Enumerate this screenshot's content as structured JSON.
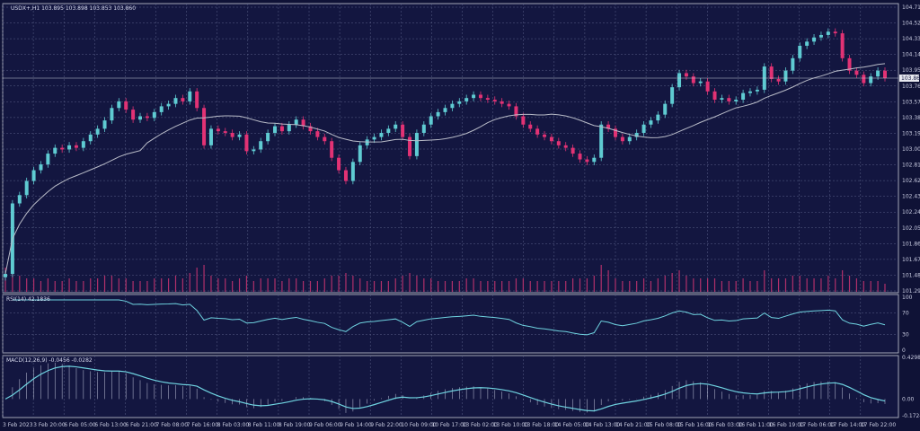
{
  "chart_data": {
    "type": "candlestick",
    "title": "USDX+,H1 103.895 103.898 103.853 103.860",
    "symbol_timeframe": "USDX+,H1",
    "last_price_label": "103.860",
    "last_price": 103.86,
    "colors": {
      "background": "#131640",
      "grid": "#5b6188",
      "bull": "#5fcbd2",
      "bear": "#e23274",
      "ma": "#b9bcc8",
      "volume": "#b0306a",
      "indicator": "#6fd3e0",
      "macd_hist": "#a7abc4",
      "frame": "#c9ccd8"
    },
    "price_axis": {
      "ticks": [
        "104.715",
        "104.525",
        "104.335",
        "104.145",
        "103.955",
        "103.765",
        "103.575",
        "103.385",
        "103.195",
        "103.005",
        "102.815",
        "102.625",
        "102.435",
        "102.245",
        "102.055",
        "101.865",
        "101.675",
        "101.485",
        "101.295"
      ],
      "ylim": [
        101.295,
        104.715
      ]
    },
    "time_axis": [
      "3 Feb 2023",
      "3 Feb 20:00",
      "6 Feb 05:00",
      "6 Feb 13:00",
      "6 Feb 21:00",
      "7 Feb 08:00",
      "7 Feb 16:00",
      "8 Feb 03:00",
      "8 Feb 11:00",
      "8 Feb 19:00",
      "9 Feb 06:00",
      "9 Feb 14:00",
      "9 Feb 22:00",
      "10 Feb 09:00",
      "10 Feb 17:00",
      "13 Feb 02:00",
      "13 Feb 10:00",
      "13 Feb 18:00",
      "14 Feb 05:00",
      "14 Feb 13:00",
      "14 Feb 21:00",
      "15 Feb 08:00",
      "15 Feb 16:00",
      "16 Feb 03:00",
      "16 Feb 11:00",
      "16 Feb 19:00",
      "17 Feb 06:00",
      "17 Feb 14:00",
      "17 Feb 22:00"
    ],
    "open_first": 101.46,
    "closes": [
      101.5,
      102.35,
      102.45,
      102.62,
      102.75,
      102.82,
      102.95,
      103.02,
      103.0,
      103.05,
      103.02,
      103.1,
      103.18,
      103.25,
      103.35,
      103.5,
      103.58,
      103.48,
      103.36,
      103.4,
      103.38,
      103.45,
      103.52,
      103.55,
      103.62,
      103.58,
      103.7,
      103.5,
      103.05,
      103.25,
      103.22,
      103.2,
      103.15,
      103.18,
      102.98,
      103.0,
      103.1,
      103.2,
      103.28,
      103.22,
      103.3,
      103.36,
      103.28,
      103.22,
      103.15,
      103.1,
      102.9,
      102.75,
      102.62,
      102.85,
      103.05,
      103.12,
      103.15,
      103.2,
      103.25,
      103.3,
      103.15,
      102.92,
      103.2,
      103.3,
      103.4,
      103.45,
      103.5,
      103.55,
      103.58,
      103.62,
      103.66,
      103.62,
      103.6,
      103.58,
      103.55,
      103.52,
      103.4,
      103.3,
      103.25,
      103.18,
      103.15,
      103.1,
      103.05,
      103.02,
      102.95,
      102.88,
      102.85,
      102.9,
      103.3,
      103.25,
      103.15,
      103.1,
      103.15,
      103.2,
      103.3,
      103.35,
      103.42,
      103.55,
      103.75,
      103.92,
      103.88,
      103.8,
      103.82,
      103.7,
      103.6,
      103.62,
      103.58,
      103.6,
      103.68,
      103.7,
      103.72,
      104.0,
      103.85,
      103.82,
      103.95,
      104.1,
      104.25,
      104.3,
      104.35,
      104.38,
      104.42,
      104.4,
      104.1,
      103.95,
      103.9,
      103.8,
      103.88,
      103.95,
      103.86
    ],
    "volumes": [
      9,
      8,
      6,
      5,
      5,
      4,
      5,
      4,
      4,
      5,
      4,
      4,
      5,
      5,
      6,
      6,
      5,
      5,
      4,
      4,
      4,
      5,
      5,
      5,
      6,
      5,
      7,
      9,
      10,
      6,
      5,
      5,
      4,
      5,
      6,
      4,
      5,
      5,
      5,
      4,
      5,
      5,
      4,
      4,
      4,
      5,
      6,
      6,
      7,
      6,
      5,
      4,
      4,
      4,
      4,
      5,
      6,
      7,
      6,
      5,
      5,
      4,
      4,
      4,
      4,
      5,
      5,
      4,
      4,
      4,
      4,
      4,
      5,
      5,
      4,
      4,
      4,
      4,
      4,
      4,
      5,
      5,
      5,
      6,
      10,
      8,
      5,
      4,
      4,
      4,
      5,
      4,
      5,
      6,
      7,
      8,
      6,
      5,
      5,
      5,
      5,
      4,
      4,
      4,
      5,
      4,
      4,
      8,
      5,
      5,
      5,
      6,
      6,
      5,
      5,
      5,
      6,
      5,
      8,
      6,
      5,
      4,
      4,
      4,
      3
    ],
    "ma_period": 20,
    "rsi": {
      "label": "RSI(14) 42.1836",
      "period": 14,
      "ticks": [
        "100",
        "70",
        "30",
        "0"
      ],
      "ylim": [
        0,
        100
      ]
    },
    "macd": {
      "label": "MACD(12,26,9) -0.0456 -0.0282",
      "ticks": [
        "0.4298",
        "0.00",
        "-0.1724"
      ],
      "ylim": [
        -0.1724,
        0.4298
      ]
    }
  }
}
